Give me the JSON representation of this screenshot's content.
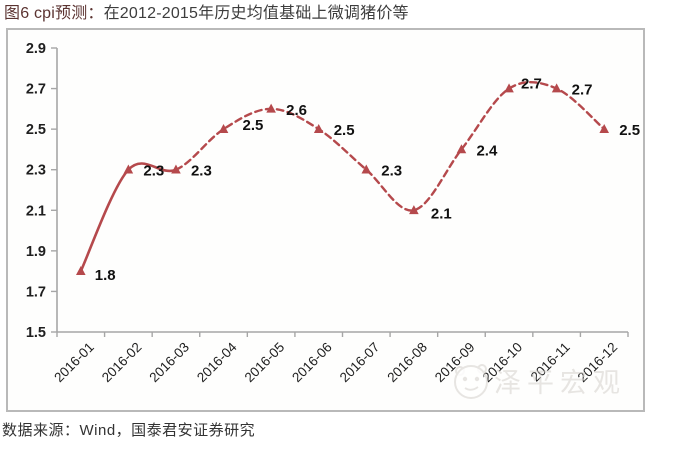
{
  "title": {
    "prefix": "图6 cpi预测：",
    "text": "在2012-2015年历史均值基础上微调猪价等"
  },
  "source": "数据来源：Wind，国泰君安证券研究",
  "watermark": {
    "icon": "panda-face",
    "text": "泽平宏观"
  },
  "colors": {
    "line": "#b5494c",
    "axis": "#a6a6a6",
    "tick_label": "#1f1f1f",
    "data_label": "#111111",
    "frame_border": "#b9b9b9",
    "title_prefix": "#5b3331",
    "title_text": "#3d3d3d",
    "watermark": "#d5d1cc"
  },
  "chart_data": {
    "type": "line",
    "x": [
      "2016-01",
      "2016-02",
      "2016-03",
      "2016-04",
      "2016-05",
      "2016-06",
      "2016-07",
      "2016-08",
      "2016-09",
      "2016-10",
      "2016-11",
      "2016-12"
    ],
    "series": [
      {
        "name": "cpi预测",
        "values": [
          1.8,
          2.3,
          2.3,
          2.5,
          2.6,
          2.5,
          2.3,
          2.1,
          2.4,
          2.7,
          2.7,
          2.5
        ],
        "style": {
          "smooth": true,
          "marker": "triangle",
          "solid_until_index": 2,
          "dashed_after": true
        }
      }
    ],
    "ylim": [
      1.5,
      2.9
    ],
    "yticks": [
      1.5,
      1.7,
      1.9,
      2.1,
      2.3,
      2.5,
      2.7,
      2.9
    ],
    "data_labels": true,
    "grid": false,
    "legend": false,
    "x_label_rotation": -45
  }
}
